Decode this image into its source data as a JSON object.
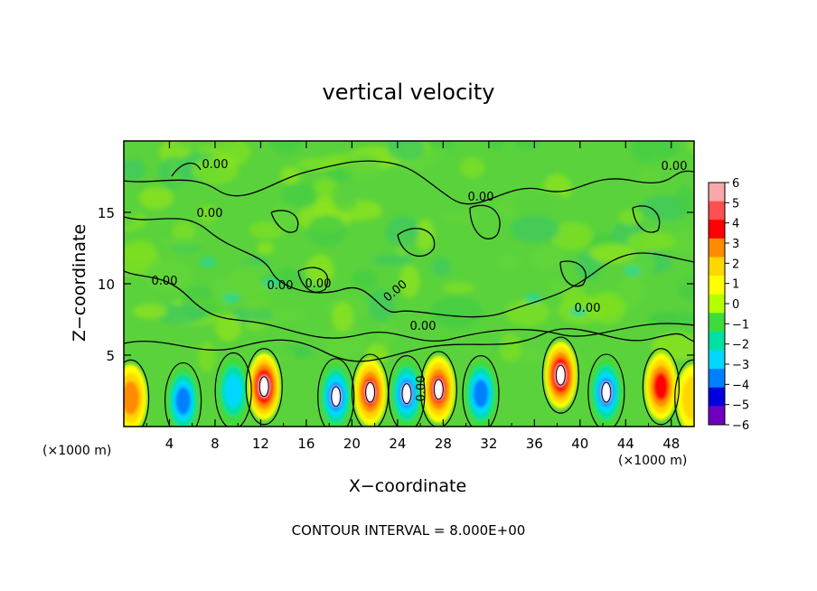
{
  "chart_data": {
    "type": "heatmap",
    "title": "vertical velocity",
    "xlabel": "X−coordinate",
    "ylabel": "Z−coordinate",
    "x_unit_left": "(×1000 m)",
    "x_unit_right": "(×1000 m)",
    "footnote": "CONTOUR INTERVAL = 8.000E+00",
    "xlim": [
      0,
      50
    ],
    "ylim": [
      0,
      20
    ],
    "x_ticks": [
      "4",
      "8",
      "12",
      "16",
      "20",
      "24",
      "28",
      "32",
      "36",
      "40",
      "44",
      "48"
    ],
    "y_ticks": [
      "5",
      "10",
      "15"
    ],
    "contour_labels": [
      "0.00",
      "0.00",
      "0.00",
      "0.00",
      "0.00",
      "0.00",
      "0.00",
      "0.00",
      "0.00",
      "0.00",
      "0.00"
    ],
    "colorbar": {
      "min": -6,
      "max": 6,
      "ticks": [
        "6",
        "5",
        "4",
        "3",
        "2",
        "1",
        "0",
        "−1",
        "−2",
        "−3",
        "−4",
        "−5",
        "−6"
      ],
      "colors": [
        "#f7a8a8",
        "#ff5050",
        "#ff0000",
        "#ff8c00",
        "#ffd700",
        "#ffff00",
        "#b4ff00",
        "#3cdc3c",
        "#00e0a0",
        "#00d8ff",
        "#0080ff",
        "#0000e0",
        "#7000c0"
      ]
    },
    "cells": [
      {
        "x": 0.6,
        "z": 2.0,
        "w": 2.6
      },
      {
        "x": 5.2,
        "z": 1.8,
        "w": -3.5
      },
      {
        "x": 9.6,
        "z": 2.5,
        "w": -3.2
      },
      {
        "x": 12.3,
        "z": 2.8,
        "w": 4.6
      },
      {
        "x": 18.6,
        "z": 2.1,
        "w": -4.0
      },
      {
        "x": 21.6,
        "z": 2.4,
        "w": 4.2
      },
      {
        "x": 24.8,
        "z": 2.3,
        "w": -4.3
      },
      {
        "x": 27.6,
        "z": 2.6,
        "w": 4.3
      },
      {
        "x": 31.3,
        "z": 2.3,
        "w": -3.8
      },
      {
        "x": 38.3,
        "z": 3.6,
        "w": 4.6
      },
      {
        "x": 42.3,
        "z": 2.4,
        "w": -4.0
      },
      {
        "x": 47.1,
        "z": 2.8,
        "w": 3.5
      },
      {
        "x": 49.9,
        "z": 2.0,
        "w": 2.0
      }
    ]
  }
}
